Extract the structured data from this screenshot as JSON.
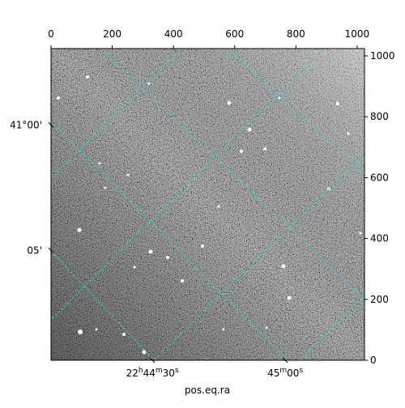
{
  "chart_data": {
    "type": "image",
    "xlim": [
      0,
      1024
    ],
    "ylim": [
      0,
      1024
    ],
    "xticks": [
      0,
      200,
      400,
      600,
      800,
      1000
    ],
    "yticks": [
      0,
      200,
      400,
      600,
      800,
      1000
    ],
    "xlabel": "pos.eq.ra",
    "ra_ticks": [
      {
        "value": 331,
        "label": "22h44m30s"
      },
      {
        "value": 765,
        "label": "45m00s"
      }
    ],
    "dec_ticks": [
      {
        "value": 773,
        "label": "41°00'"
      },
      {
        "value": 361,
        "label": "05'"
      }
    ]
  }
}
